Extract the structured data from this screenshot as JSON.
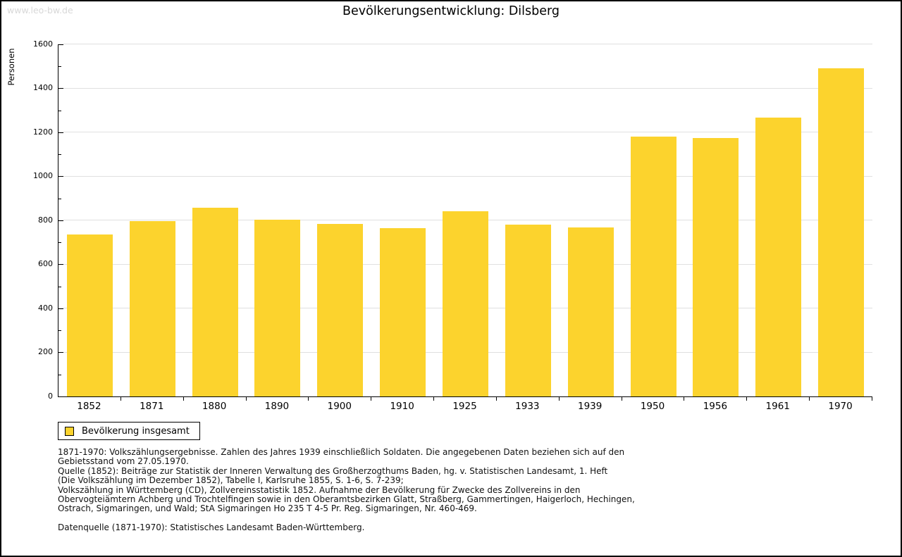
{
  "watermark": "www.leo-bw.de",
  "chart_data": {
    "type": "bar",
    "title": "Bevölkerungsentwicklung: Dilsberg",
    "xlabel": "",
    "ylabel": "Personen",
    "categories": [
      "1852",
      "1871",
      "1880",
      "1890",
      "1900",
      "1910",
      "1925",
      "1933",
      "1939",
      "1950",
      "1956",
      "1961",
      "1970"
    ],
    "series": [
      {
        "name": "Bevölkerung insgesamt",
        "values": [
          736,
          798,
          857,
          803,
          785,
          766,
          842,
          780,
          768,
          1180,
          1176,
          1268,
          1492
        ]
      }
    ],
    "ylim": [
      0,
      1600
    ],
    "ytick_step": 200,
    "yminor_step": 100,
    "grid": true,
    "legend_position": "bottom-left",
    "bar_color": "#fcd32d"
  },
  "legend": {
    "swatch_color": "#fcd32d",
    "label": "Bevölkerung insgesamt"
  },
  "notes": {
    "lines": [
      "1871-1970: Volkszählungsergebnisse. Zahlen des Jahres 1939 einschließlich Soldaten. Die angegebenen Daten beziehen sich auf den",
      "Gebietsstand vom 27.05.1970.",
      "Quelle (1852): Beiträge zur Statistik der Inneren Verwaltung des Großherzogthums Baden, hg. v. Statistischen Landesamt, 1. Heft",
      "(Die Volkszählung im Dezember 1852), Tabelle I, Karlsruhe 1855, S. 1-6, S. 7-239;",
      "Volkszählung in Württemberg (CD), Zollvereinsstatistik 1852. Aufnahme der Bevölkerung für Zwecke des Zollvereins in den",
      "Obervogteiämtern Achberg und Trochtelfingen sowie in den Oberamtsbezirken Glatt, Straßberg, Gammertingen, Haigerloch, Hechingen,",
      "Ostrach, Sigmaringen, und Wald; StA Sigmaringen Ho 235 T 4-5 Pr. Reg. Sigmaringen, Nr. 460-469."
    ],
    "datasource": "Datenquelle (1871-1970): Statistisches Landesamt Baden-Württemberg."
  },
  "colors": {
    "bar": "#fcd32d",
    "grid": "#e0e0e0",
    "axis": "#000000",
    "watermark": "#d8d8d8",
    "text": "#111111"
  }
}
